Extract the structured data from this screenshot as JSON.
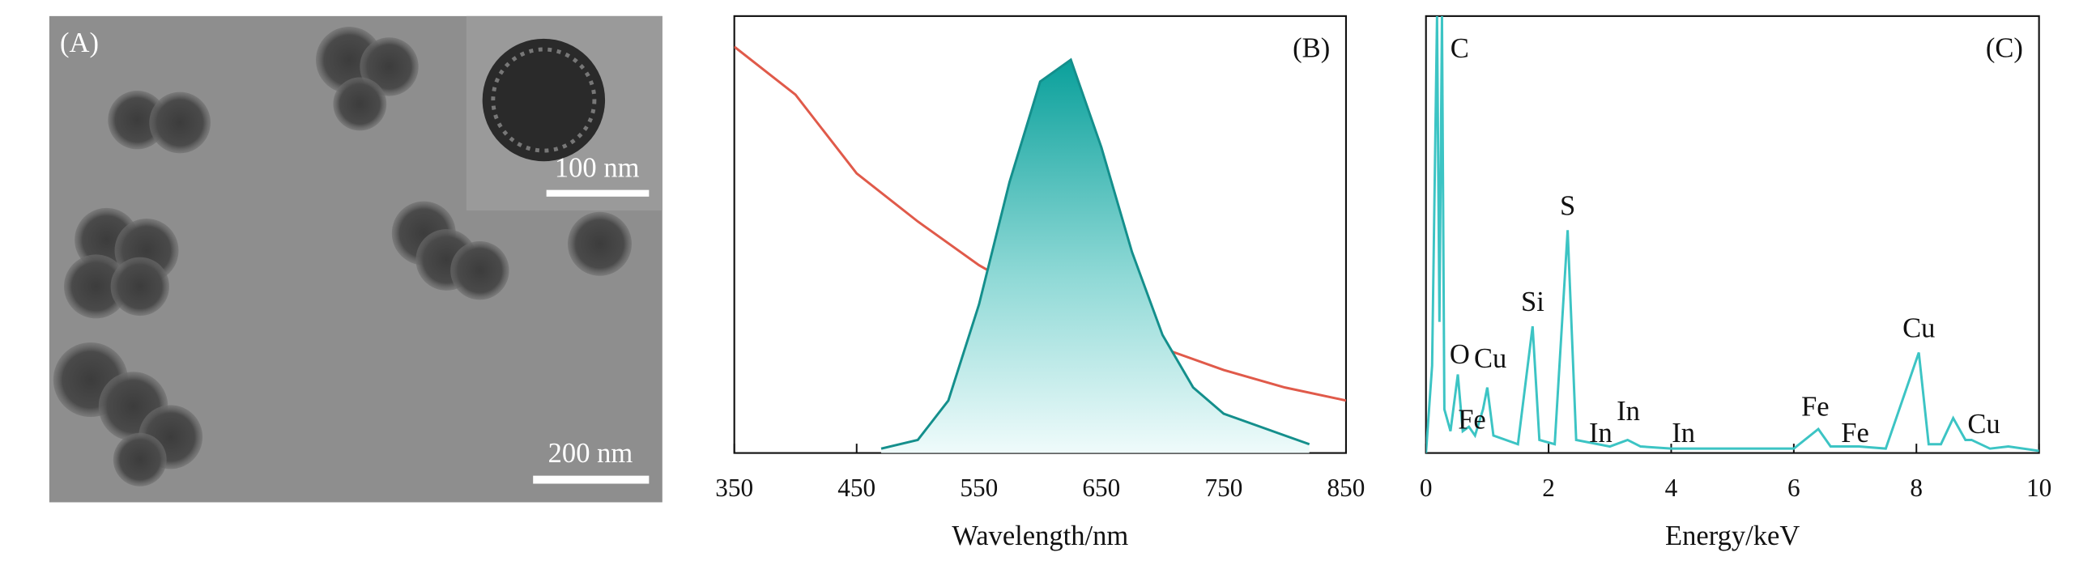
{
  "image_panel": {
    "panel_label": "(A)",
    "inset_scale_bar": "100 nm",
    "scale_bar": "200 nm"
  },
  "chart_data": [
    {
      "type": "line",
      "panel_label": "(B)",
      "x_label": "Wavelength/nm",
      "xlim": [
        350,
        850
      ],
      "xticks": [
        350,
        450,
        550,
        650,
        750,
        850
      ],
      "ylim": [
        0,
        1
      ],
      "series": [
        {
          "color": "#e05a4a",
          "style": "line",
          "x": [
            350,
            400,
            450,
            500,
            550,
            600,
            650,
            700,
            750,
            800,
            850
          ],
          "values": [
            0.93,
            0.82,
            0.64,
            0.53,
            0.43,
            0.35,
            0.29,
            0.24,
            0.19,
            0.15,
            0.12
          ]
        },
        {
          "color": "#148f8c",
          "style": "area",
          "x": [
            470,
            500,
            525,
            550,
            575,
            600,
            625,
            650,
            675,
            700,
            725,
            750,
            800,
            820
          ],
          "values": [
            0.01,
            0.03,
            0.12,
            0.34,
            0.62,
            0.85,
            0.9,
            0.7,
            0.46,
            0.27,
            0.15,
            0.09,
            0.04,
            0.02
          ]
        }
      ]
    },
    {
      "type": "line",
      "panel_label": "(C)",
      "x_label": "Energy/keV",
      "xlim": [
        0,
        10
      ],
      "xticks": [
        0,
        2,
        4,
        6,
        8,
        10
      ],
      "ylim": [
        0,
        1
      ],
      "x": [
        0,
        0.1,
        0.18,
        0.22,
        0.26,
        0.3,
        0.4,
        0.52,
        0.6,
        0.7,
        0.8,
        0.93,
        1.0,
        1.1,
        1.5,
        1.74,
        1.85,
        2.1,
        2.31,
        2.45,
        3.0,
        3.29,
        3.5,
        4.0,
        6.0,
        6.4,
        6.6,
        7.06,
        7.5,
        8.04,
        8.2,
        8.4,
        8.6,
        8.8,
        8.9,
        9.2,
        9.5,
        10
      ],
      "series": [
        {
          "color": "#3cc4c4",
          "values": [
            0,
            0.2,
            1.0,
            0.3,
            1.0,
            0.1,
            0.05,
            0.18,
            0.05,
            0.06,
            0.04,
            0.1,
            0.15,
            0.04,
            0.02,
            0.29,
            0.03,
            0.02,
            0.51,
            0.03,
            0.015,
            0.03,
            0.015,
            0.01,
            0.01,
            0.055,
            0.015,
            0.015,
            0.01,
            0.23,
            0.02,
            0.02,
            0.08,
            0.03,
            0.03,
            0.01,
            0.015,
            0.005
          ]
        }
      ],
      "annotations": [
        {
          "text": "C",
          "x": 0.55,
          "y": 0.92
        },
        {
          "text": "O",
          "x": 0.55,
          "y": 0.22
        },
        {
          "text": "Cu",
          "x": 1.05,
          "y": 0.21
        },
        {
          "text": "Fe",
          "x": 0.75,
          "y": 0.07
        },
        {
          "text": "Si",
          "x": 1.74,
          "y": 0.34
        },
        {
          "text": "S",
          "x": 2.31,
          "y": 0.56
        },
        {
          "text": "In",
          "x": 2.85,
          "y": 0.04
        },
        {
          "text": "In",
          "x": 3.3,
          "y": 0.09
        },
        {
          "text": "In",
          "x": 4.2,
          "y": 0.04
        },
        {
          "text": "Fe",
          "x": 6.35,
          "y": 0.1
        },
        {
          "text": "Fe",
          "x": 7.0,
          "y": 0.04
        },
        {
          "text": "Cu",
          "x": 8.04,
          "y": 0.28
        },
        {
          "text": "Cu",
          "x": 9.1,
          "y": 0.06
        }
      ]
    }
  ]
}
